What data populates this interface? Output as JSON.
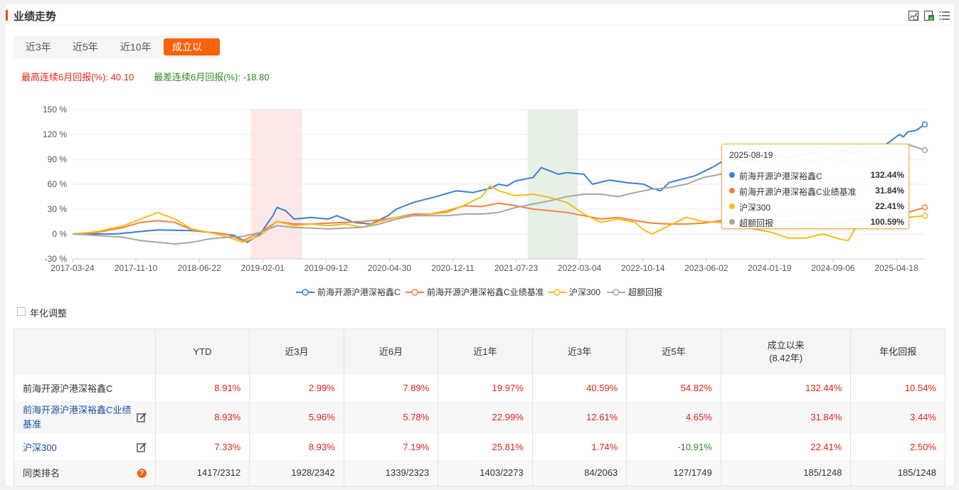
{
  "header": {
    "title": "业绩走势"
  },
  "tabs": [
    {
      "label": "近3年",
      "active": false
    },
    {
      "label": "近5年",
      "active": false
    },
    {
      "label": "近10年",
      "active": false
    },
    {
      "label": "成立以来",
      "active": true
    }
  ],
  "stats": {
    "best_label": "最高连续6月回报(%):",
    "best_value": "40.10",
    "worst_label": "最差连续6月回报(%):",
    "worst_value": "-18.80"
  },
  "chart_data": {
    "type": "line",
    "y_ticks": [
      "150 %",
      "120 %",
      "90 %",
      "60 %",
      "30 %",
      "0 %",
      "-30 %"
    ],
    "ylim": [
      -30,
      150
    ],
    "x_ticks": [
      "2017-03-24",
      "2017-11-10",
      "2018-06-22",
      "2019-02-01",
      "2019-09-12",
      "2020-04-30",
      "2020-12-11",
      "2021-07-23",
      "2022-03-04",
      "2022-10-14",
      "2023-06-02",
      "2024-01-19",
      "2024-09-06",
      "2025-04-18"
    ],
    "shaded_ranges": [
      {
        "from": 0.209,
        "to": 0.269,
        "color": "#fde8e8"
      },
      {
        "from": 0.534,
        "to": 0.593,
        "color": "#e6f1e6"
      }
    ],
    "series": [
      {
        "name": "前海开源沪港深裕鑫C",
        "color": "#3b7fd9",
        "points": [
          [
            0,
            0
          ],
          [
            0.05,
            0
          ],
          [
            0.08,
            3
          ],
          [
            0.1,
            5
          ],
          [
            0.14,
            4
          ],
          [
            0.17,
            1
          ],
          [
            0.19,
            -2
          ],
          [
            0.205,
            -10
          ],
          [
            0.22,
            0
          ],
          [
            0.235,
            22
          ],
          [
            0.24,
            32
          ],
          [
            0.25,
            28
          ],
          [
            0.26,
            18
          ],
          [
            0.28,
            20
          ],
          [
            0.3,
            18
          ],
          [
            0.31,
            22
          ],
          [
            0.33,
            14
          ],
          [
            0.35,
            12
          ],
          [
            0.37,
            22
          ],
          [
            0.38,
            30
          ],
          [
            0.4,
            38
          ],
          [
            0.43,
            46
          ],
          [
            0.45,
            52
          ],
          [
            0.47,
            50
          ],
          [
            0.49,
            55
          ],
          [
            0.5,
            60
          ],
          [
            0.51,
            58
          ],
          [
            0.52,
            64
          ],
          [
            0.54,
            68
          ],
          [
            0.55,
            80
          ],
          [
            0.57,
            72
          ],
          [
            0.58,
            74
          ],
          [
            0.6,
            72
          ],
          [
            0.61,
            60
          ],
          [
            0.63,
            65
          ],
          [
            0.65,
            62
          ],
          [
            0.67,
            60
          ],
          [
            0.68,
            55
          ],
          [
            0.69,
            52
          ],
          [
            0.7,
            62
          ],
          [
            0.73,
            70
          ],
          [
            0.75,
            80
          ],
          [
            0.77,
            92
          ],
          [
            0.78,
            90
          ],
          [
            0.8,
            86
          ],
          [
            0.82,
            97
          ],
          [
            0.84,
            92
          ],
          [
            0.86,
            96
          ],
          [
            0.88,
            100
          ],
          [
            0.89,
            103
          ],
          [
            0.9,
            100
          ],
          [
            0.92,
            98
          ],
          [
            0.93,
            104
          ],
          [
            0.94,
            101
          ],
          [
            0.95,
            105
          ],
          [
            0.96,
            112
          ],
          [
            0.97,
            120
          ],
          [
            0.975,
            117
          ],
          [
            0.98,
            123
          ],
          [
            0.99,
            125
          ],
          [
            1,
            132
          ]
        ]
      },
      {
        "name": "前海开源沪港深裕鑫C业绩基准",
        "color": "#f5803e",
        "points": [
          [
            0,
            0
          ],
          [
            0.03,
            2
          ],
          [
            0.06,
            8
          ],
          [
            0.08,
            14
          ],
          [
            0.1,
            16
          ],
          [
            0.12,
            14
          ],
          [
            0.14,
            5
          ],
          [
            0.16,
            2
          ],
          [
            0.18,
            0
          ],
          [
            0.2,
            -8
          ],
          [
            0.22,
            2
          ],
          [
            0.24,
            15
          ],
          [
            0.26,
            12
          ],
          [
            0.28,
            12
          ],
          [
            0.3,
            13
          ],
          [
            0.32,
            14
          ],
          [
            0.34,
            15
          ],
          [
            0.36,
            17
          ],
          [
            0.38,
            20
          ],
          [
            0.4,
            24
          ],
          [
            0.42,
            24
          ],
          [
            0.44,
            28
          ],
          [
            0.46,
            34
          ],
          [
            0.48,
            33
          ],
          [
            0.5,
            37
          ],
          [
            0.52,
            34
          ],
          [
            0.54,
            30
          ],
          [
            0.56,
            28
          ],
          [
            0.58,
            26
          ],
          [
            0.6,
            22
          ],
          [
            0.62,
            18
          ],
          [
            0.64,
            20
          ],
          [
            0.66,
            16
          ],
          [
            0.68,
            13
          ],
          [
            0.7,
            12
          ],
          [
            0.72,
            12
          ],
          [
            0.74,
            13
          ],
          [
            0.76,
            16
          ],
          [
            0.78,
            14
          ],
          [
            0.8,
            15
          ],
          [
            0.82,
            16
          ],
          [
            0.84,
            15
          ],
          [
            0.86,
            13
          ],
          [
            0.88,
            11
          ],
          [
            0.9,
            14
          ],
          [
            0.92,
            17
          ],
          [
            0.94,
            20
          ],
          [
            0.96,
            22
          ],
          [
            0.98,
            26
          ],
          [
            1,
            32
          ]
        ]
      },
      {
        "name": "沪深300",
        "color": "#f6bd16",
        "points": [
          [
            0,
            0
          ],
          [
            0.03,
            3
          ],
          [
            0.06,
            10
          ],
          [
            0.08,
            18
          ],
          [
            0.1,
            26
          ],
          [
            0.12,
            18
          ],
          [
            0.14,
            6
          ],
          [
            0.16,
            2
          ],
          [
            0.18,
            -3
          ],
          [
            0.2,
            -10
          ],
          [
            0.22,
            -2
          ],
          [
            0.24,
            15
          ],
          [
            0.26,
            10
          ],
          [
            0.28,
            12
          ],
          [
            0.3,
            10
          ],
          [
            0.32,
            12
          ],
          [
            0.34,
            8
          ],
          [
            0.36,
            15
          ],
          [
            0.38,
            20
          ],
          [
            0.4,
            22
          ],
          [
            0.42,
            24
          ],
          [
            0.44,
            26
          ],
          [
            0.46,
            35
          ],
          [
            0.48,
            45
          ],
          [
            0.49,
            58
          ],
          [
            0.5,
            52
          ],
          [
            0.52,
            46
          ],
          [
            0.54,
            48
          ],
          [
            0.56,
            44
          ],
          [
            0.58,
            38
          ],
          [
            0.6,
            24
          ],
          [
            0.62,
            14
          ],
          [
            0.64,
            18
          ],
          [
            0.66,
            14
          ],
          [
            0.67,
            5
          ],
          [
            0.68,
            0
          ],
          [
            0.7,
            10
          ],
          [
            0.72,
            20
          ],
          [
            0.74,
            15
          ],
          [
            0.76,
            14
          ],
          [
            0.78,
            10
          ],
          [
            0.8,
            6
          ],
          [
            0.82,
            2
          ],
          [
            0.84,
            -5
          ],
          [
            0.86,
            -5
          ],
          [
            0.88,
            0
          ],
          [
            0.9,
            -6
          ],
          [
            0.91,
            -8
          ],
          [
            0.92,
            10
          ],
          [
            0.94,
            15
          ],
          [
            0.96,
            18
          ],
          [
            0.98,
            20
          ],
          [
            1,
            22
          ]
        ]
      },
      {
        "name": "超额回报",
        "color": "#a6a6a6",
        "points": [
          [
            0,
            0
          ],
          [
            0.03,
            -2
          ],
          [
            0.06,
            -4
          ],
          [
            0.08,
            -8
          ],
          [
            0.1,
            -10
          ],
          [
            0.12,
            -12
          ],
          [
            0.14,
            -10
          ],
          [
            0.16,
            -6
          ],
          [
            0.18,
            -4
          ],
          [
            0.2,
            -3
          ],
          [
            0.22,
            2
          ],
          [
            0.24,
            10
          ],
          [
            0.26,
            8
          ],
          [
            0.28,
            7
          ],
          [
            0.3,
            6
          ],
          [
            0.32,
            7
          ],
          [
            0.34,
            8
          ],
          [
            0.36,
            12
          ],
          [
            0.38,
            18
          ],
          [
            0.4,
            22
          ],
          [
            0.42,
            22
          ],
          [
            0.44,
            22
          ],
          [
            0.46,
            24
          ],
          [
            0.48,
            24
          ],
          [
            0.5,
            26
          ],
          [
            0.52,
            32
          ],
          [
            0.54,
            36
          ],
          [
            0.56,
            40
          ],
          [
            0.58,
            45
          ],
          [
            0.6,
            48
          ],
          [
            0.62,
            48
          ],
          [
            0.64,
            45
          ],
          [
            0.66,
            50
          ],
          [
            0.68,
            54
          ],
          [
            0.7,
            56
          ],
          [
            0.72,
            60
          ],
          [
            0.74,
            68
          ],
          [
            0.76,
            72
          ],
          [
            0.78,
            80
          ],
          [
            0.8,
            72
          ],
          [
            0.82,
            78
          ],
          [
            0.84,
            82
          ],
          [
            0.86,
            86
          ],
          [
            0.88,
            92
          ],
          [
            0.9,
            88
          ],
          [
            0.92,
            86
          ],
          [
            0.94,
            90
          ],
          [
            0.96,
            96
          ],
          [
            0.98,
            108
          ],
          [
            1,
            101
          ]
        ]
      }
    ]
  },
  "tooltip": {
    "date": "2025-08-19",
    "rows": [
      {
        "name": "前海开源沪港深裕鑫C",
        "value": "132.44%",
        "color": "#3b7fd9"
      },
      {
        "name": "前海开源沪港深裕鑫C业绩基准",
        "value": "31.84%",
        "color": "#f5803e"
      },
      {
        "name": "沪深300",
        "value": "22.41%",
        "color": "#f6bd16"
      },
      {
        "name": "超额回报",
        "value": "100.59%",
        "color": "#a6a6a6"
      }
    ]
  },
  "legend": [
    "前海开源沪港深裕鑫C",
    "前海开源沪港深裕鑫C业绩基准",
    "沪深300",
    "超额回报"
  ],
  "annualize_label": "年化调整",
  "table": {
    "headers": [
      "YTD",
      "近3月",
      "近6月",
      "近1年",
      "近3年",
      "近5年",
      "成立以来",
      "(8.42年)",
      "年化回报"
    ],
    "rows": [
      {
        "name": "前海开源沪港深裕鑫C",
        "values": [
          "8.91%",
          "2.99%",
          "7.89%",
          "19.97%",
          "40.59%",
          "54.82%",
          "132.44%",
          "10.54%"
        ]
      },
      {
        "name": "前海开源沪港深裕鑫C业绩基准",
        "values": [
          "8.93%",
          "5.96%",
          "5.78%",
          "22.99%",
          "12.61%",
          "4.65%",
          "31.84%",
          "3.44%"
        ]
      },
      {
        "name": "沪深300",
        "values": [
          "7.33%",
          "8.93%",
          "7.19%",
          "25.81%",
          "1.74%",
          "-10.91%",
          "22.41%",
          "2.50%"
        ]
      },
      {
        "name": "同类排名",
        "values": [
          "1417/2312",
          "1928/2342",
          "1339/2323",
          "1403/2273",
          "84/2063",
          "127/1749",
          "185/1248",
          "185/1248"
        ]
      }
    ]
  }
}
